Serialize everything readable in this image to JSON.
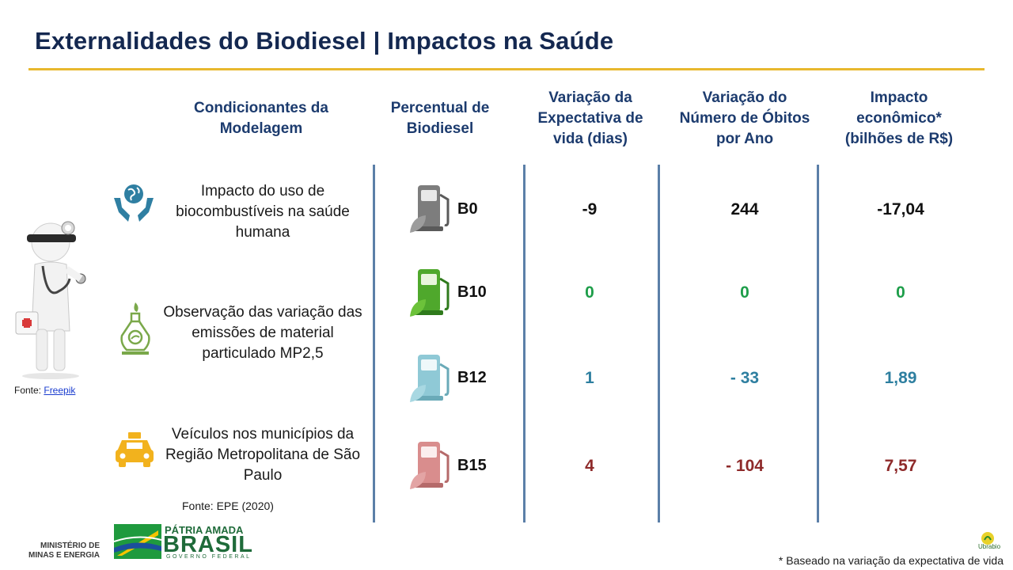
{
  "title": "Externalidades do Biodiesel | Impactos na Saúde",
  "colors": {
    "accent_rule": "#e8b82e",
    "header_text": "#1c3b6e",
    "green": "#1e9e4a",
    "teal": "#2e7fa0",
    "red": "#8e2a2a",
    "divider": "#5b7fa8"
  },
  "headers": {
    "cond": "Condicionantes da Modelagem",
    "pct": "Percentual de Biodiesel",
    "var_life": "Variação da Expectativa de vida (dias)",
    "var_deaths": "Variação do Número de Óbitos por Ano",
    "impact": "Impacto econômico* (bilhões de R$)"
  },
  "conditions": [
    {
      "text": "Impacto do uso de biocombustíveis na saúde humana",
      "icon": "globe-hands-icon"
    },
    {
      "text": "Observação das variação das emissões de material particulado MP2,5",
      "icon": "biofuel-flask-icon"
    },
    {
      "text": "Veículos nos municípios da Região Metropolitana de São Paulo",
      "icon": "taxi-icon"
    }
  ],
  "rows": [
    {
      "pct": "B0",
      "life": "-9",
      "deaths": "244",
      "impact": "-17,04",
      "pump_color": "gray"
    },
    {
      "pct": "B10",
      "life": "0",
      "deaths": "0",
      "impact": "0",
      "pump_color": "green"
    },
    {
      "pct": "B12",
      "life": "1",
      "deaths": "- 33",
      "impact": "1,89",
      "pump_color": "light-blue"
    },
    {
      "pct": "B15",
      "life": "4",
      "deaths": "- 104",
      "impact": "7,57",
      "pump_color": "light-red"
    }
  ],
  "sources": {
    "freepik_prefix": "Fonte: ",
    "freepik_link": "Freepik",
    "epe": "Fonte: EPE (2020)",
    "footnote": "* Baseado na variação da expectativa de vida"
  },
  "logos": {
    "ministerio_line1": "MINISTÉRIO DE",
    "ministerio_line2": "MINAS E ENERGIA",
    "patria": "PÁTRIA AMADA",
    "brasil": "BRASIL",
    "governo": "GOVERNO FEDERAL",
    "ubrabio": "Ubrabio"
  },
  "doctor_icon": "doctor-figure-icon"
}
